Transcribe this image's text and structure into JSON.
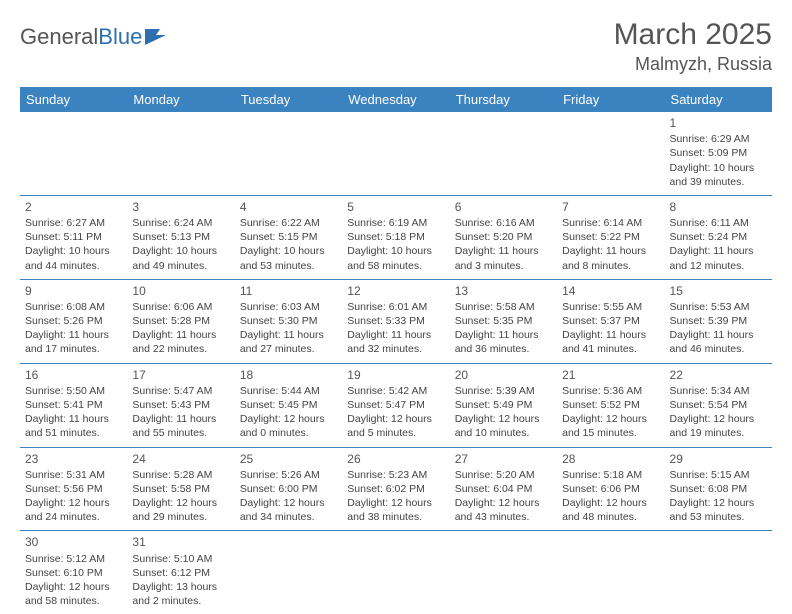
{
  "brand": {
    "part1": "General",
    "part2": "Blue"
  },
  "title": "March 2025",
  "location": "Malmyzh, Russia",
  "header_bg": "#3b83c0",
  "days": [
    "Sunday",
    "Monday",
    "Tuesday",
    "Wednesday",
    "Thursday",
    "Friday",
    "Saturday"
  ],
  "weeks": [
    [
      null,
      null,
      null,
      null,
      null,
      null,
      {
        "n": "1",
        "sr": "6:29 AM",
        "ss": "5:09 PM",
        "dl": "10 hours and 39 minutes."
      }
    ],
    [
      {
        "n": "2",
        "sr": "6:27 AM",
        "ss": "5:11 PM",
        "dl": "10 hours and 44 minutes."
      },
      {
        "n": "3",
        "sr": "6:24 AM",
        "ss": "5:13 PM",
        "dl": "10 hours and 49 minutes."
      },
      {
        "n": "4",
        "sr": "6:22 AM",
        "ss": "5:15 PM",
        "dl": "10 hours and 53 minutes."
      },
      {
        "n": "5",
        "sr": "6:19 AM",
        "ss": "5:18 PM",
        "dl": "10 hours and 58 minutes."
      },
      {
        "n": "6",
        "sr": "6:16 AM",
        "ss": "5:20 PM",
        "dl": "11 hours and 3 minutes."
      },
      {
        "n": "7",
        "sr": "6:14 AM",
        "ss": "5:22 PM",
        "dl": "11 hours and 8 minutes."
      },
      {
        "n": "8",
        "sr": "6:11 AM",
        "ss": "5:24 PM",
        "dl": "11 hours and 12 minutes."
      }
    ],
    [
      {
        "n": "9",
        "sr": "6:08 AM",
        "ss": "5:26 PM",
        "dl": "11 hours and 17 minutes."
      },
      {
        "n": "10",
        "sr": "6:06 AM",
        "ss": "5:28 PM",
        "dl": "11 hours and 22 minutes."
      },
      {
        "n": "11",
        "sr": "6:03 AM",
        "ss": "5:30 PM",
        "dl": "11 hours and 27 minutes."
      },
      {
        "n": "12",
        "sr": "6:01 AM",
        "ss": "5:33 PM",
        "dl": "11 hours and 32 minutes."
      },
      {
        "n": "13",
        "sr": "5:58 AM",
        "ss": "5:35 PM",
        "dl": "11 hours and 36 minutes."
      },
      {
        "n": "14",
        "sr": "5:55 AM",
        "ss": "5:37 PM",
        "dl": "11 hours and 41 minutes."
      },
      {
        "n": "15",
        "sr": "5:53 AM",
        "ss": "5:39 PM",
        "dl": "11 hours and 46 minutes."
      }
    ],
    [
      {
        "n": "16",
        "sr": "5:50 AM",
        "ss": "5:41 PM",
        "dl": "11 hours and 51 minutes."
      },
      {
        "n": "17",
        "sr": "5:47 AM",
        "ss": "5:43 PM",
        "dl": "11 hours and 55 minutes."
      },
      {
        "n": "18",
        "sr": "5:44 AM",
        "ss": "5:45 PM",
        "dl": "12 hours and 0 minutes."
      },
      {
        "n": "19",
        "sr": "5:42 AM",
        "ss": "5:47 PM",
        "dl": "12 hours and 5 minutes."
      },
      {
        "n": "20",
        "sr": "5:39 AM",
        "ss": "5:49 PM",
        "dl": "12 hours and 10 minutes."
      },
      {
        "n": "21",
        "sr": "5:36 AM",
        "ss": "5:52 PM",
        "dl": "12 hours and 15 minutes."
      },
      {
        "n": "22",
        "sr": "5:34 AM",
        "ss": "5:54 PM",
        "dl": "12 hours and 19 minutes."
      }
    ],
    [
      {
        "n": "23",
        "sr": "5:31 AM",
        "ss": "5:56 PM",
        "dl": "12 hours and 24 minutes."
      },
      {
        "n": "24",
        "sr": "5:28 AM",
        "ss": "5:58 PM",
        "dl": "12 hours and 29 minutes."
      },
      {
        "n": "25",
        "sr": "5:26 AM",
        "ss": "6:00 PM",
        "dl": "12 hours and 34 minutes."
      },
      {
        "n": "26",
        "sr": "5:23 AM",
        "ss": "6:02 PM",
        "dl": "12 hours and 38 minutes."
      },
      {
        "n": "27",
        "sr": "5:20 AM",
        "ss": "6:04 PM",
        "dl": "12 hours and 43 minutes."
      },
      {
        "n": "28",
        "sr": "5:18 AM",
        "ss": "6:06 PM",
        "dl": "12 hours and 48 minutes."
      },
      {
        "n": "29",
        "sr": "5:15 AM",
        "ss": "6:08 PM",
        "dl": "12 hours and 53 minutes."
      }
    ],
    [
      {
        "n": "30",
        "sr": "5:12 AM",
        "ss": "6:10 PM",
        "dl": "12 hours and 58 minutes."
      },
      {
        "n": "31",
        "sr": "5:10 AM",
        "ss": "6:12 PM",
        "dl": "13 hours and 2 minutes."
      },
      null,
      null,
      null,
      null,
      null
    ]
  ],
  "labels": {
    "sunrise": "Sunrise: ",
    "sunset": "Sunset: ",
    "daylight": "Daylight: "
  }
}
